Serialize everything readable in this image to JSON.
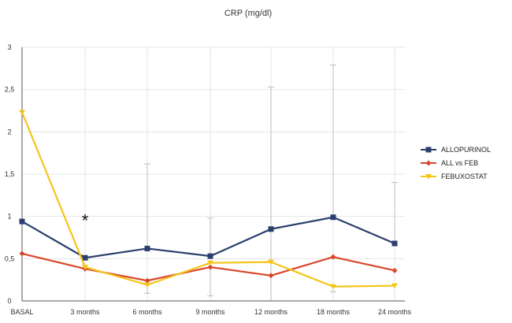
{
  "chart_data": {
    "type": "line",
    "title": "CRP (mg/dl)",
    "categories": [
      "BASAL",
      "3 months",
      "6  months",
      "9  months",
      "12 months",
      "18 months",
      "24 months"
    ],
    "ylim": [
      0,
      3
    ],
    "yticks": [
      {
        "value": 0,
        "label": "0"
      },
      {
        "value": 0.5,
        "label": "0,5"
      },
      {
        "value": 1,
        "label": "1"
      },
      {
        "value": 1.5,
        "label": "1,5"
      },
      {
        "value": 2,
        "label": "2"
      },
      {
        "value": 2.5,
        "label": "2,5"
      },
      {
        "value": 3,
        "label": "3"
      }
    ],
    "grid": true,
    "legend_position": "right",
    "series": [
      {
        "name": "ALLOPURINOL",
        "color": "#2b3f6e",
        "marker": "square",
        "values": [
          0.94,
          0.51,
          0.62,
          0.53,
          0.85,
          0.99,
          0.68
        ],
        "error_upper": [
          null,
          null,
          1.62,
          0.98,
          2.53,
          2.79,
          1.4
        ],
        "error_lower": [
          null,
          null,
          null,
          null,
          0.0,
          null,
          null
        ]
      },
      {
        "name": "ALL vs FEB",
        "color": "#d9472b",
        "marker": "diamond",
        "values": [
          0.56,
          0.38,
          0.24,
          0.4,
          0.3,
          0.52,
          0.36
        ]
      },
      {
        "name": "FEBUXOSTAT",
        "color": "#f5c518",
        "marker": "triangle-down",
        "values": [
          2.23,
          0.4,
          0.19,
          0.45,
          0.46,
          0.17,
          0.18
        ],
        "error_lower": [
          null,
          null,
          0.09,
          0.06,
          null,
          0.11,
          null
        ]
      }
    ],
    "annotations": [
      {
        "text": "*",
        "category_index": 1,
        "y": 1.0
      }
    ]
  }
}
